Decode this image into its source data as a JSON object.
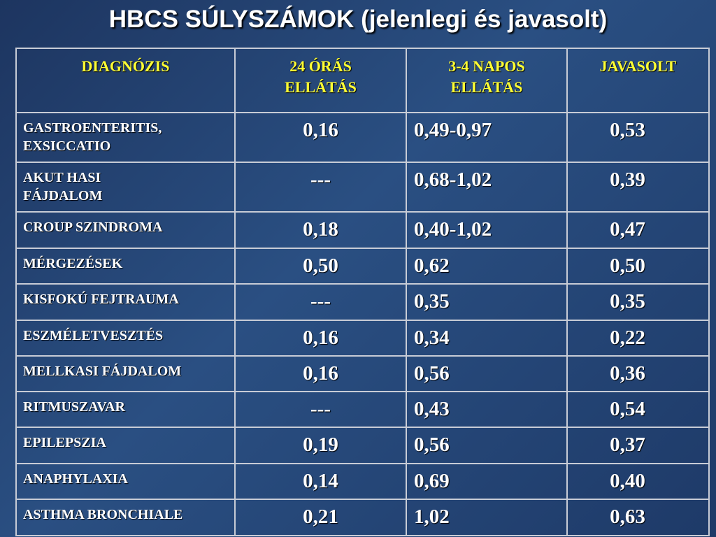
{
  "title": "HBCS SÚLYSZÁMOK (jelenlegi és javasolt)",
  "table": {
    "header": [
      "DIAGNÓZIS",
      "24 ÓRÁS\nELLÁTÁS",
      "3-4 NAPOS\nELLÁTÁS",
      "JAVASOLT"
    ],
    "rows": [
      [
        "GASTROENTERITIS,\nEXSICCATIO",
        "0,16",
        "0,49-0,97",
        "0,53"
      ],
      [
        "AKUT HASI\nFÁJDALOM",
        "---",
        "0,68-1,02",
        "0,39"
      ],
      [
        "CROUP SZINDROMA",
        "0,18",
        "0,40-1,02",
        "0,47"
      ],
      [
        "MÉRGEZÉSEK",
        "0,50",
        "0,62",
        "0,50"
      ],
      [
        "KISFOKÚ FEJTRAUMA",
        "---",
        "0,35",
        "0,35"
      ],
      [
        "ESZMÉLETVESZTÉS",
        "0,16",
        "0,34",
        "0,22"
      ],
      [
        "MELLKASI FÁJDALOM",
        "0,16",
        "0,56",
        "0,36"
      ],
      [
        "RITMUSZAVAR",
        "---",
        "0,43",
        "0,54"
      ],
      [
        "EPILEPSZIA",
        "0,19",
        "0,56",
        "0,37"
      ],
      [
        "ANAPHYLAXIA",
        "0,14",
        "0,69",
        "0,40"
      ],
      [
        "ASTHMA BRONCHIALE",
        "0,21",
        "1,02",
        "0,63"
      ]
    ]
  }
}
